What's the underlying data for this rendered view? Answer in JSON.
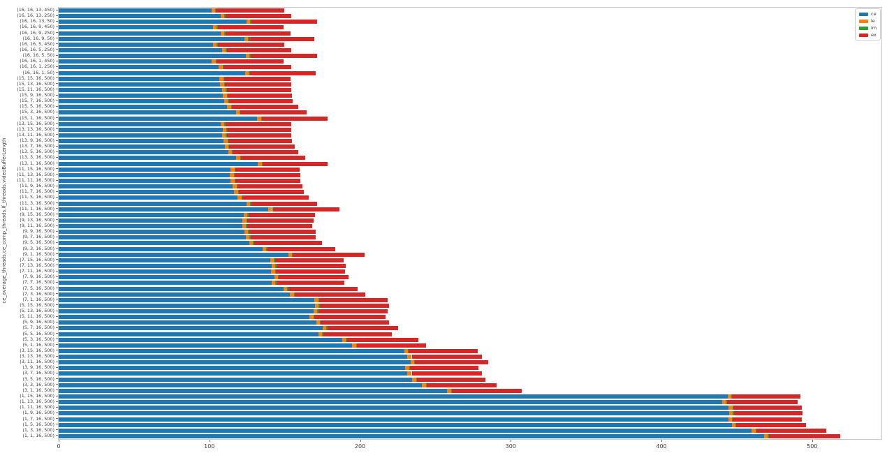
{
  "chart_data": {
    "type": "bar",
    "orientation": "horizontal",
    "stacked": true,
    "title": "",
    "xlabel": "",
    "ylabel": "ce_average_threads,ce_comp_threads,lf_threads,videoBufferLength",
    "xlim": [
      0,
      546
    ],
    "xticks": [
      0,
      100,
      200,
      300,
      400,
      500
    ],
    "grid": false,
    "legend_position": "upper-right",
    "series_names": [
      "ce",
      "le",
      "im",
      "ex"
    ],
    "series_colors": [
      "#1f77b4",
      "#ff7f0e",
      "#2ca02c",
      "#d62728"
    ],
    "rows_format": [
      "category",
      "ce",
      "le",
      "im",
      "ex"
    ],
    "rows": [
      [
        "(16, 16, 13, 450)",
        101.3,
        2.5,
        0.7,
        45.2
      ],
      [
        "(16, 16, 13, 250)",
        107.5,
        2.5,
        0.7,
        43.6
      ],
      [
        "(16, 16, 13, 50)",
        124.5,
        2.5,
        0.7,
        43.9
      ],
      [
        "(16, 16, 9, 450)",
        102.4,
        2.5,
        0.7,
        43.6
      ],
      [
        "(16, 16, 9, 250)",
        107.5,
        2.5,
        0.7,
        43.2
      ],
      [
        "(16, 16, 9, 50)",
        123.2,
        2.5,
        0.7,
        43.3
      ],
      [
        "(16, 16, 5, 450)",
        102.4,
        2.5,
        0.7,
        44.1
      ],
      [
        "(16, 16, 5, 250)",
        108.3,
        2.5,
        0.7,
        42.8
      ],
      [
        "(16, 16, 5, 50)",
        124.2,
        2.5,
        0.7,
        43.9
      ],
      [
        "(16, 16, 1, 450)",
        101.6,
        2.5,
        0.7,
        44.4
      ],
      [
        "(16, 16, 1, 250)",
        106.2,
        2.5,
        0.7,
        44.9
      ],
      [
        "(16, 16, 1, 50)",
        123.7,
        2.5,
        0.7,
        43.6
      ],
      [
        "(15, 15, 16, 500)",
        106.7,
        2.5,
        0.7,
        44.0
      ],
      [
        "(15, 13, 16, 500)",
        107.2,
        2.5,
        0.7,
        43.8
      ],
      [
        "(15, 11, 16, 500)",
        108.5,
        2.5,
        0.7,
        42.6
      ],
      [
        "(15, 9, 16, 500)",
        109.0,
        2.5,
        0.7,
        42.4
      ],
      [
        "(15, 7, 16, 500)",
        109.8,
        2.5,
        0.7,
        42.4
      ],
      [
        "(15, 5, 16, 500)",
        111.8,
        2.5,
        0.7,
        43.8
      ],
      [
        "(15, 3, 16, 500)",
        117.5,
        2.5,
        0.7,
        43.7
      ],
      [
        "(15, 1, 16, 500)",
        131.7,
        2.5,
        0.7,
        43.7
      ],
      [
        "(13, 15, 16, 500)",
        107.5,
        2.5,
        0.7,
        43.6
      ],
      [
        "(13, 13, 16, 500)",
        108.7,
        2.5,
        0.7,
        42.3
      ],
      [
        "(13, 11, 16, 500)",
        108.3,
        2.5,
        0.7,
        42.8
      ],
      [
        "(13, 9, 16, 500)",
        109.5,
        2.5,
        0.7,
        42.2
      ],
      [
        "(13, 7, 16, 500)",
        110.1,
        2.5,
        0.7,
        43.2
      ],
      [
        "(13, 5, 16, 500)",
        112.4,
        2.5,
        0.7,
        43.6
      ],
      [
        "(13, 3, 16, 500)",
        117.8,
        2.5,
        0.7,
        42.6
      ],
      [
        "(13, 1, 16, 500)",
        132.2,
        2.5,
        0.7,
        43.2
      ],
      [
        "(11, 15, 16, 500)",
        114.1,
        2.5,
        0.7,
        42.4
      ],
      [
        "(11, 13, 16, 500)",
        113.7,
        2.5,
        0.7,
        43.6
      ],
      [
        "(11, 11, 16, 500)",
        114.1,
        2.5,
        0.7,
        43.2
      ],
      [
        "(11, 9, 16, 500)",
        115.5,
        2.5,
        0.7,
        43.2
      ],
      [
        "(11, 7, 16, 500)",
        116.4,
        2.5,
        0.7,
        43.1
      ],
      [
        "(11, 5, 16, 500)",
        118.8,
        2.5,
        0.7,
        43.9
      ],
      [
        "(11, 3, 16, 500)",
        124.5,
        2.5,
        0.7,
        43.6
      ],
      [
        "(11, 1, 16, 500)",
        139.1,
        2.5,
        0.7,
        44.0
      ],
      [
        "(9, 15, 16, 500)",
        122.8,
        2.5,
        0.7,
        43.9
      ],
      [
        "(9, 13, 16, 500)",
        122.1,
        2.5,
        0.7,
        43.8
      ],
      [
        "(9, 11, 16, 500)",
        121.8,
        2.5,
        0.7,
        43.1
      ],
      [
        "(9, 9, 16, 500)",
        123.3,
        2.5,
        0.7,
        44.2
      ],
      [
        "(9, 7, 16, 500)",
        124.1,
        2.5,
        0.7,
        43.1
      ],
      [
        "(9, 5, 16, 500)",
        126.5,
        2.5,
        0.7,
        45.0
      ],
      [
        "(9, 3, 16, 500)",
        135.3,
        2.5,
        0.7,
        45.1
      ],
      [
        "(9, 1, 16, 500)",
        152.3,
        2.5,
        0.7,
        47.5
      ],
      [
        "(7, 15, 16, 500)",
        140.3,
        2.5,
        0.7,
        45.5
      ],
      [
        "(7, 13, 16, 500)",
        141.3,
        2.5,
        0.7,
        46.0
      ],
      [
        "(7, 11, 16, 500)",
        141.0,
        2.5,
        0.7,
        45.8
      ],
      [
        "(7, 9, 16, 500)",
        143.0,
        2.5,
        0.7,
        46.2
      ],
      [
        "(7, 7, 16, 500)",
        141.4,
        2.5,
        0.7,
        45.2
      ],
      [
        "(7, 5, 16, 500)",
        149.2,
        2.5,
        0.7,
        45.8
      ],
      [
        "(7, 3, 16, 500)",
        153.5,
        2.5,
        0.7,
        47.0
      ],
      [
        "(7, 1, 16, 500)",
        169.7,
        2.5,
        0.7,
        45.4
      ],
      [
        "(5, 15, 16, 500)",
        170.0,
        2.5,
        0.7,
        45.9
      ],
      [
        "(5, 13, 16, 500)",
        169.2,
        2.5,
        0.7,
        45.9
      ],
      [
        "(5, 11, 16, 500)",
        166.6,
        2.5,
        0.7,
        47.0
      ],
      [
        "(5, 9, 16, 500)",
        170.8,
        2.5,
        0.7,
        45.4
      ],
      [
        "(5, 7, 16, 500)",
        175.2,
        2.5,
        0.7,
        47.0
      ],
      [
        "(5, 5, 16, 500)",
        172.4,
        2.5,
        0.7,
        45.4
      ],
      [
        "(5, 3, 16, 500)",
        188.1,
        2.5,
        0.7,
        47.5
      ],
      [
        "(5, 1, 16, 500)",
        194.8,
        2.5,
        0.7,
        45.9
      ],
      [
        "(3, 15, 16, 500)",
        229.2,
        2.5,
        0.7,
        45.5
      ],
      [
        "(3, 13, 16, 500)",
        231.1,
        2.5,
        0.7,
        46.7
      ],
      [
        "(3, 11, 16, 500)",
        233.4,
        2.5,
        0.7,
        48.3
      ],
      [
        "(3, 9, 16, 500)",
        230.0,
        2.5,
        0.7,
        45.5
      ],
      [
        "(3, 7, 16, 500)",
        231.1,
        2.5,
        0.7,
        46.7
      ],
      [
        "(3, 5, 16, 500)",
        234.6,
        2.5,
        0.7,
        45.5
      ],
      [
        "(3, 3, 16, 500)",
        241.1,
        2.5,
        0.7,
        46.2
      ],
      [
        "(3, 1, 16, 500)",
        257.8,
        2.5,
        0.7,
        46.2
      ],
      [
        "(1, 15, 16, 500)",
        443.8,
        2.5,
        0.7,
        45.4
      ],
      [
        "(1, 13, 16, 500)",
        440.4,
        2.5,
        0.7,
        47.0
      ],
      [
        "(1, 11, 16, 500)",
        444.6,
        2.5,
        0.7,
        45.4
      ],
      [
        "(1, 9, 16, 500)",
        445.0,
        2.5,
        0.7,
        45.5
      ],
      [
        "(1, 7, 16, 500)",
        444.3,
        2.5,
        0.7,
        45.7
      ],
      [
        "(1, 5, 16, 500)",
        446.6,
        2.5,
        0.7,
        46.0
      ],
      [
        "(1, 3, 16, 500)",
        460.0,
        2.5,
        0.7,
        46.2
      ],
      [
        "(1, 1, 16, 500)",
        468.0,
        2.5,
        0.7,
        47.5
      ]
    ]
  }
}
